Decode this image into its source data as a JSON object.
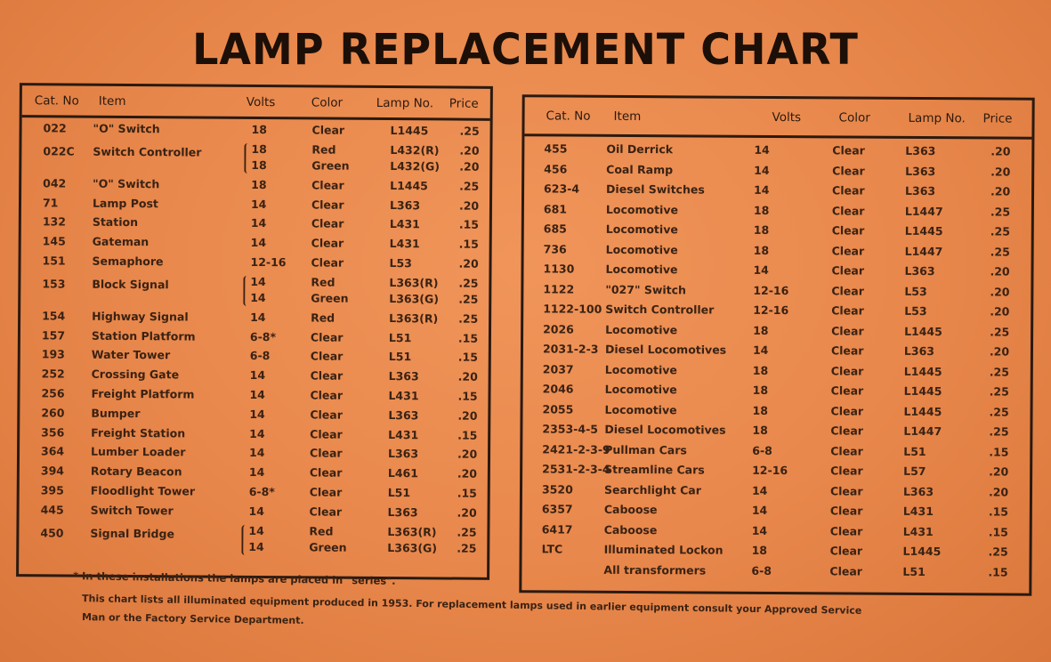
{
  "title": "LAMP REPLACEMENT CHART",
  "headers": {
    "cat": "Cat. No",
    "item": "Item",
    "volts": "Volts",
    "color": "Color",
    "lamp": "Lamp No.",
    "price": "Price"
  },
  "left_rows": [
    {
      "cat": "022",
      "item": "\"O\" Switch",
      "volts": [
        "18"
      ],
      "color": [
        "Clear"
      ],
      "lamp": [
        "L1445"
      ],
      "price": [
        ".25"
      ]
    },
    {
      "cat": "022C",
      "item": "Switch Controller",
      "volts": [
        "18",
        "18"
      ],
      "color": [
        "Red",
        "Green"
      ],
      "lamp": [
        "L432(R)",
        "L432(G)"
      ],
      "price": [
        ".20",
        ".20"
      ]
    },
    {
      "cat": "042",
      "item": "\"O\" Switch",
      "volts": [
        "18"
      ],
      "color": [
        "Clear"
      ],
      "lamp": [
        "L1445"
      ],
      "price": [
        ".25"
      ]
    },
    {
      "cat": "71",
      "item": "Lamp Post",
      "volts": [
        "14"
      ],
      "color": [
        "Clear"
      ],
      "lamp": [
        "L363"
      ],
      "price": [
        ".20"
      ]
    },
    {
      "cat": "132",
      "item": "Station",
      "volts": [
        "14"
      ],
      "color": [
        "Clear"
      ],
      "lamp": [
        "L431"
      ],
      "price": [
        ".15"
      ]
    },
    {
      "cat": "145",
      "item": "Gateman",
      "volts": [
        "14"
      ],
      "color": [
        "Clear"
      ],
      "lamp": [
        "L431"
      ],
      "price": [
        ".15"
      ]
    },
    {
      "cat": "151",
      "item": "Semaphore",
      "volts": [
        "12-16"
      ],
      "color": [
        "Clear"
      ],
      "lamp": [
        "L53"
      ],
      "price": [
        ".20"
      ]
    },
    {
      "cat": "153",
      "item": "Block Signal",
      "volts": [
        "14",
        "14"
      ],
      "color": [
        "Red",
        "Green"
      ],
      "lamp": [
        "L363(R)",
        "L363(G)"
      ],
      "price": [
        ".25",
        ".25"
      ]
    },
    {
      "cat": "154",
      "item": "Highway Signal",
      "volts": [
        "14"
      ],
      "color": [
        "Red"
      ],
      "lamp": [
        "L363(R)"
      ],
      "price": [
        ".25"
      ]
    },
    {
      "cat": "157",
      "item": "Station Platform",
      "volts": [
        "6-8*"
      ],
      "color": [
        "Clear"
      ],
      "lamp": [
        "L51"
      ],
      "price": [
        ".15"
      ]
    },
    {
      "cat": "193",
      "item": "Water Tower",
      "volts": [
        "6-8"
      ],
      "color": [
        "Clear"
      ],
      "lamp": [
        "L51"
      ],
      "price": [
        ".15"
      ]
    },
    {
      "cat": "252",
      "item": "Crossing Gate",
      "volts": [
        "14"
      ],
      "color": [
        "Clear"
      ],
      "lamp": [
        "L363"
      ],
      "price": [
        ".20"
      ]
    },
    {
      "cat": "256",
      "item": "Freight Platform",
      "volts": [
        "14"
      ],
      "color": [
        "Clear"
      ],
      "lamp": [
        "L431"
      ],
      "price": [
        ".15"
      ]
    },
    {
      "cat": "260",
      "item": "Bumper",
      "volts": [
        "14"
      ],
      "color": [
        "Clear"
      ],
      "lamp": [
        "L363"
      ],
      "price": [
        ".20"
      ]
    },
    {
      "cat": "356",
      "item": "Freight Station",
      "volts": [
        "14"
      ],
      "color": [
        "Clear"
      ],
      "lamp": [
        "L431"
      ],
      "price": [
        ".15"
      ]
    },
    {
      "cat": "364",
      "item": "Lumber Loader",
      "volts": [
        "14"
      ],
      "color": [
        "Clear"
      ],
      "lamp": [
        "L363"
      ],
      "price": [
        ".20"
      ]
    },
    {
      "cat": "394",
      "item": "Rotary Beacon",
      "volts": [
        "14"
      ],
      "color": [
        "Clear"
      ],
      "lamp": [
        "L461"
      ],
      "price": [
        ".20"
      ]
    },
    {
      "cat": "395",
      "item": "Floodlight Tower",
      "volts": [
        "6-8*"
      ],
      "color": [
        "Clear"
      ],
      "lamp": [
        "L51"
      ],
      "price": [
        ".15"
      ]
    },
    {
      "cat": "445",
      "item": "Switch Tower",
      "volts": [
        "14"
      ],
      "color": [
        "Clear"
      ],
      "lamp": [
        "L363"
      ],
      "price": [
        ".20"
      ]
    },
    {
      "cat": "450",
      "item": "Signal Bridge",
      "volts": [
        "14",
        "14"
      ],
      "color": [
        "Red",
        "Green"
      ],
      "lamp": [
        "L363(R)",
        "L363(G)"
      ],
      "price": [
        ".25",
        ".25"
      ]
    }
  ],
  "right_rows": [
    {
      "cat": "455",
      "item": "Oil Derrick",
      "volts": [
        "14"
      ],
      "color": [
        "Clear"
      ],
      "lamp": [
        "L363"
      ],
      "price": [
        ".20"
      ]
    },
    {
      "cat": "456",
      "item": "Coal Ramp",
      "volts": [
        "14"
      ],
      "color": [
        "Clear"
      ],
      "lamp": [
        "L363"
      ],
      "price": [
        ".20"
      ]
    },
    {
      "cat": "623-4",
      "item": "Diesel Switches",
      "volts": [
        "14"
      ],
      "color": [
        "Clear"
      ],
      "lamp": [
        "L363"
      ],
      "price": [
        ".20"
      ]
    },
    {
      "cat": "681",
      "item": "Locomotive",
      "volts": [
        "18"
      ],
      "color": [
        "Clear"
      ],
      "lamp": [
        "L1447"
      ],
      "price": [
        ".25"
      ]
    },
    {
      "cat": "685",
      "item": "Locomotive",
      "volts": [
        "18"
      ],
      "color": [
        "Clear"
      ],
      "lamp": [
        "L1445"
      ],
      "price": [
        ".25"
      ]
    },
    {
      "cat": "736",
      "item": "Locomotive",
      "volts": [
        "18"
      ],
      "color": [
        "Clear"
      ],
      "lamp": [
        "L1447"
      ],
      "price": [
        ".25"
      ]
    },
    {
      "cat": "1130",
      "item": "Locomotive",
      "volts": [
        "14"
      ],
      "color": [
        "Clear"
      ],
      "lamp": [
        "L363"
      ],
      "price": [
        ".20"
      ]
    },
    {
      "cat": "1122",
      "item": "\"027\" Switch",
      "volts": [
        "12-16"
      ],
      "color": [
        "Clear"
      ],
      "lamp": [
        "L53"
      ],
      "price": [
        ".20"
      ]
    },
    {
      "cat": "1122-100",
      "item": "Switch Controller",
      "volts": [
        "12-16"
      ],
      "color": [
        "Clear"
      ],
      "lamp": [
        "L53"
      ],
      "price": [
        ".20"
      ]
    },
    {
      "cat": "2026",
      "item": "Locomotive",
      "volts": [
        "18"
      ],
      "color": [
        "Clear"
      ],
      "lamp": [
        "L1445"
      ],
      "price": [
        ".25"
      ]
    },
    {
      "cat": "2031-2-3",
      "item": "Diesel Locomotives",
      "volts": [
        "14"
      ],
      "color": [
        "Clear"
      ],
      "lamp": [
        "L363"
      ],
      "price": [
        ".20"
      ]
    },
    {
      "cat": "2037",
      "item": "Locomotive",
      "volts": [
        "18"
      ],
      "color": [
        "Clear"
      ],
      "lamp": [
        "L1445"
      ],
      "price": [
        ".25"
      ]
    },
    {
      "cat": "2046",
      "item": "Locomotive",
      "volts": [
        "18"
      ],
      "color": [
        "Clear"
      ],
      "lamp": [
        "L1445"
      ],
      "price": [
        ".25"
      ]
    },
    {
      "cat": "2055",
      "item": "Locomotive",
      "volts": [
        "18"
      ],
      "color": [
        "Clear"
      ],
      "lamp": [
        "L1445"
      ],
      "price": [
        ".25"
      ]
    },
    {
      "cat": "2353-4-5",
      "item": "Diesel Locomotives",
      "volts": [
        "18"
      ],
      "color": [
        "Clear"
      ],
      "lamp": [
        "L1447"
      ],
      "price": [
        ".25"
      ]
    },
    {
      "cat": "2421-2-3-9",
      "item": "Pullman Cars",
      "volts": [
        "6-8"
      ],
      "color": [
        "Clear"
      ],
      "lamp": [
        "L51"
      ],
      "price": [
        ".15"
      ]
    },
    {
      "cat": "2531-2-3-4",
      "item": "Streamline Cars",
      "volts": [
        "12-16"
      ],
      "color": [
        "Clear"
      ],
      "lamp": [
        "L57"
      ],
      "price": [
        ".20"
      ]
    },
    {
      "cat": "3520",
      "item": "Searchlight Car",
      "volts": [
        "14"
      ],
      "color": [
        "Clear"
      ],
      "lamp": [
        "L363"
      ],
      "price": [
        ".20"
      ]
    },
    {
      "cat": "6357",
      "item": "Caboose",
      "volts": [
        "14"
      ],
      "color": [
        "Clear"
      ],
      "lamp": [
        "L431"
      ],
      "price": [
        ".15"
      ]
    },
    {
      "cat": "6417",
      "item": "Caboose",
      "volts": [
        "14"
      ],
      "color": [
        "Clear"
      ],
      "lamp": [
        "L431"
      ],
      "price": [
        ".15"
      ]
    },
    {
      "cat": "LTC",
      "item": "Illuminated Lockon",
      "volts": [
        "18"
      ],
      "color": [
        "Clear"
      ],
      "lamp": [
        "L1445"
      ],
      "price": [
        ".25"
      ]
    },
    {
      "cat": "",
      "item": "All transformers",
      "volts": [
        "6-8"
      ],
      "color": [
        "Clear"
      ],
      "lamp": [
        "L51"
      ],
      "price": [
        ".15"
      ]
    }
  ],
  "footnote": "* In these installations the lamps are placed in \"series\".",
  "note_line1": "This chart lists all illuminated equipment produced in 1953. For replacement lamps used in earlier equipment consult your Approved Service",
  "note_line2": "Man or the Factory Service Department."
}
